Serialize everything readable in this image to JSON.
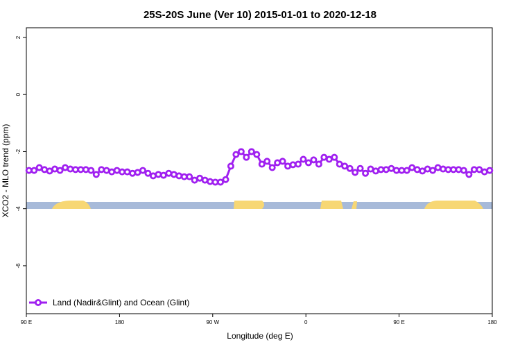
{
  "chart_data": {
    "type": "line",
    "title": "25S-20S June (Ver 10)   2015-01-01 to 2020-12-18",
    "xlabel": "Longitude (deg E)",
    "ylabel": "XCO2 - MLO trend (ppm)",
    "xlim": [
      90,
      540
    ],
    "xticks": [
      {
        "value": 90,
        "label": "90 E"
      },
      {
        "value": 180,
        "label": "180"
      },
      {
        "value": 270,
        "label": "90 W"
      },
      {
        "value": 360,
        "label": "0"
      },
      {
        "value": 450,
        "label": "90 E"
      },
      {
        "value": 540,
        "label": "180"
      }
    ],
    "ylim": [
      -7.68,
      2.34
    ],
    "yticks": [
      2,
      0,
      -2,
      -4,
      -6
    ],
    "legend": "bottom-left",
    "x": [
      92.5,
      97.5,
      102.5,
      107.5,
      112.5,
      117.5,
      122.5,
      127.5,
      132.5,
      137.5,
      142.5,
      147.5,
      152.5,
      157.5,
      162.5,
      167.5,
      172.5,
      177.5,
      182.5,
      187.5,
      192.5,
      197.5,
      202.5,
      207.5,
      212.5,
      217.5,
      222.5,
      227.5,
      232.5,
      237.5,
      242.5,
      247.5,
      252.5,
      257.5,
      262.5,
      267.5,
      272.5,
      277.5,
      282.5,
      287.5,
      292.5,
      297.5,
      302.5,
      307.5,
      312.5,
      317.5,
      322.5,
      327.5,
      332.5,
      337.5,
      342.5,
      347.5,
      352.5,
      357.5,
      362.5,
      367.5,
      372.5,
      377.5,
      382.5,
      387.5,
      392.5,
      397.5,
      402.5,
      407.5,
      412.5,
      417.5,
      422.5,
      427.5,
      432.5,
      437.5,
      442.5,
      447.5,
      452.5,
      457.5,
      462.5,
      467.5,
      472.5,
      477.5,
      482.5,
      487.5,
      492.5,
      497.5,
      502.5,
      507.5,
      512.5,
      517.5,
      522.5,
      527.5,
      532.5,
      537.5
    ],
    "series": [
      {
        "name": "Land (Nadir&Glint) and Ocean (Glint)",
        "color": "#a020f0",
        "values": [
          -2.66,
          -2.66,
          -2.56,
          -2.63,
          -2.68,
          -2.61,
          -2.66,
          -2.56,
          -2.61,
          -2.63,
          -2.63,
          -2.63,
          -2.66,
          -2.8,
          -2.63,
          -2.66,
          -2.71,
          -2.66,
          -2.71,
          -2.71,
          -2.76,
          -2.73,
          -2.66,
          -2.76,
          -2.85,
          -2.8,
          -2.83,
          -2.76,
          -2.8,
          -2.85,
          -2.88,
          -2.88,
          -3.0,
          -2.93,
          -3.0,
          -3.05,
          -3.07,
          -3.07,
          -2.98,
          -2.51,
          -2.1,
          -2.0,
          -2.2,
          -2.0,
          -2.1,
          -2.44,
          -2.34,
          -2.56,
          -2.39,
          -2.34,
          -2.51,
          -2.46,
          -2.44,
          -2.27,
          -2.39,
          -2.29,
          -2.44,
          -2.2,
          -2.27,
          -2.2,
          -2.44,
          -2.51,
          -2.59,
          -2.73,
          -2.59,
          -2.76,
          -2.61,
          -2.68,
          -2.63,
          -2.63,
          -2.59,
          -2.66,
          -2.66,
          -2.66,
          -2.56,
          -2.63,
          -2.68,
          -2.61,
          -2.66,
          -2.56,
          -2.61,
          -2.63,
          -2.63,
          -2.63,
          -2.66,
          -2.8,
          -2.63,
          -2.63,
          -2.71,
          -2.66
        ]
      }
    ]
  }
}
